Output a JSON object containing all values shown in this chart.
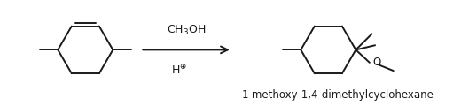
{
  "background_color": "#ffffff",
  "title_text": "1-methoxy-1,4-dimethylcyclohexane",
  "title_fontsize": 8.5,
  "line_color": "#1a1a1a",
  "line_width": 1.4,
  "fig_width": 5.2,
  "fig_height": 1.2,
  "dpi": 100,
  "arrow_label_top": "CH$_3$OH",
  "arrow_label_bottom": "H$^{\\oplus}$"
}
